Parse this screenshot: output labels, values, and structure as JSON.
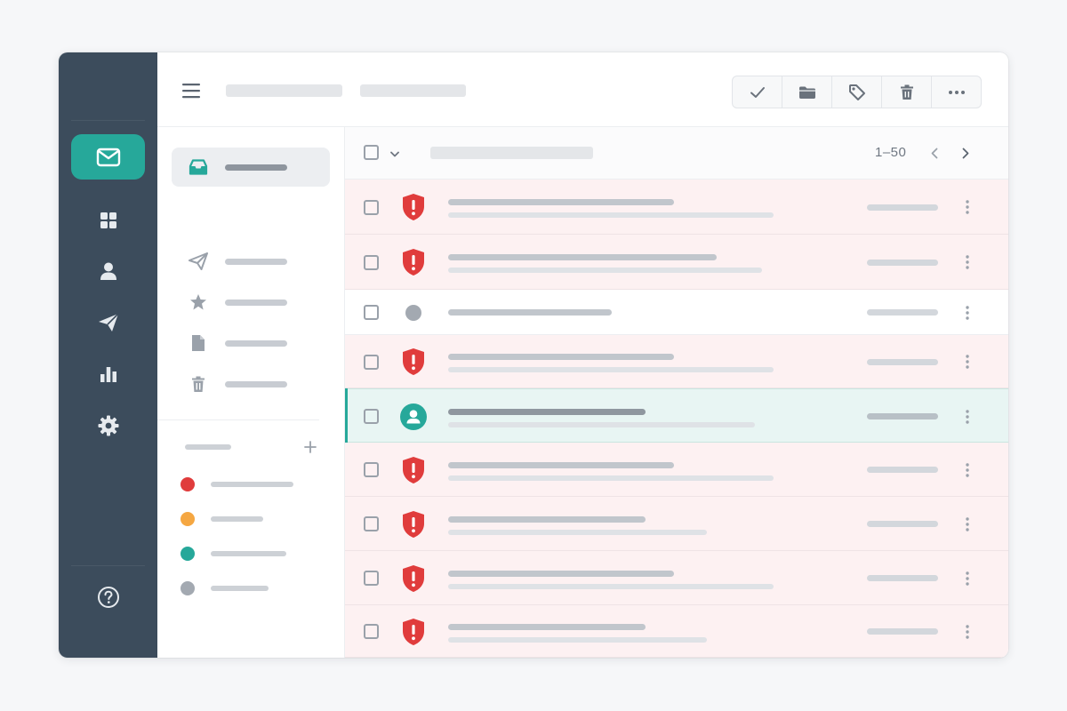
{
  "app": {
    "accent_color": "#26a89a",
    "danger_color": "#e03c3c",
    "rail_color": "#3c4c5c"
  },
  "rail": {
    "items": [
      {
        "icon": "mail-icon",
        "active": true
      },
      {
        "icon": "grid-icon"
      },
      {
        "icon": "user-icon"
      },
      {
        "icon": "send-icon"
      },
      {
        "icon": "bar-chart-icon"
      },
      {
        "icon": "gear-icon"
      }
    ],
    "footer_icon": "help-icon"
  },
  "toolbar": {
    "actions": [
      "check-icon",
      "folder-icon",
      "tag-icon",
      "trash-icon",
      "more-horizontal-icon"
    ]
  },
  "folders": {
    "items": [
      {
        "icon": "inbox-icon",
        "active": true
      },
      {
        "icon": "send-icon"
      },
      {
        "icon": "star-icon"
      },
      {
        "icon": "document-icon"
      },
      {
        "icon": "trash-icon"
      }
    ],
    "labels_add_icon": "plus-icon",
    "labels": [
      {
        "color": "#e03c3c"
      },
      {
        "color": "#f5a742"
      },
      {
        "color": "#26a89a"
      },
      {
        "color": "#a3a9b1"
      }
    ]
  },
  "list": {
    "pagination": "1–50",
    "rows": [
      {
        "type": "danger",
        "icon": "shield-alert-icon"
      },
      {
        "type": "danger",
        "icon": "shield-alert-icon"
      },
      {
        "type": "plain",
        "icon": "dot-icon"
      },
      {
        "type": "danger",
        "icon": "shield-alert-icon"
      },
      {
        "type": "selected",
        "icon": "contact-avatar-icon"
      },
      {
        "type": "danger",
        "icon": "shield-alert-icon"
      },
      {
        "type": "danger",
        "icon": "shield-alert-icon"
      },
      {
        "type": "danger",
        "icon": "shield-alert-icon"
      },
      {
        "type": "danger",
        "icon": "shield-alert-icon"
      }
    ]
  }
}
